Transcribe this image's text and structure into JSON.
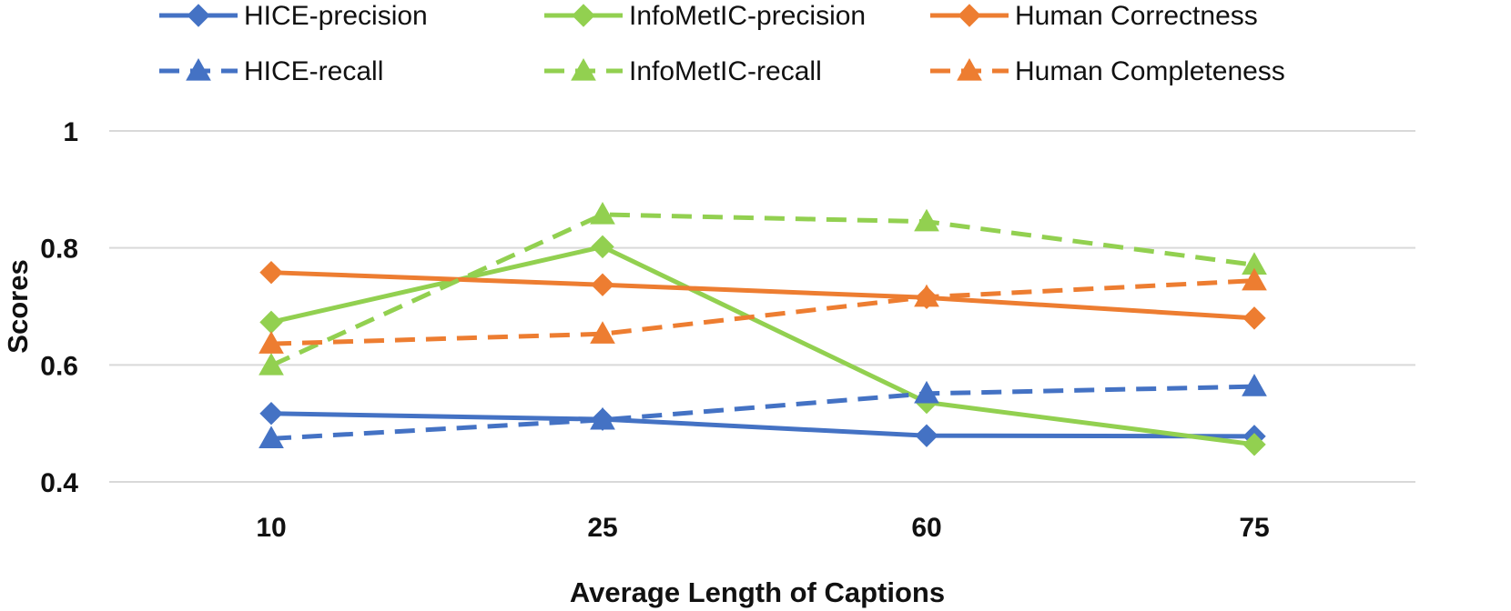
{
  "chart_data": {
    "type": "line",
    "xlabel": "Average Length of Captions",
    "ylabel": "Scores",
    "categories": [
      "10",
      "25",
      "60",
      "75"
    ],
    "yticks": [
      "0.4",
      "0.6",
      "0.8",
      "1"
    ],
    "ylim": [
      0.4,
      1.0
    ],
    "grid": true,
    "legend_position": "top",
    "series": [
      {
        "name": "HICE-precision",
        "values": [
          0.517,
          0.507,
          0.479,
          0.478
        ],
        "color": "#4472c4",
        "dash": "solid",
        "marker": "diamond"
      },
      {
        "name": "InfoMetIC-precision",
        "values": [
          0.673,
          0.802,
          0.536,
          0.464
        ],
        "color": "#92d050",
        "dash": "solid",
        "marker": "diamond"
      },
      {
        "name": "Human Correctness",
        "values": [
          0.758,
          0.737,
          0.715,
          0.68
        ],
        "color": "#ed7d31",
        "dash": "solid",
        "marker": "diamond"
      },
      {
        "name": "HICE-recall",
        "values": [
          0.474,
          0.506,
          0.551,
          0.563
        ],
        "color": "#4472c4",
        "dash": "dashed",
        "marker": "triangle"
      },
      {
        "name": "InfoMetIC-recall",
        "values": [
          0.599,
          0.857,
          0.845,
          0.771
        ],
        "color": "#92d050",
        "dash": "dashed",
        "marker": "triangle"
      },
      {
        "name": "Human Completeness",
        "values": [
          0.636,
          0.653,
          0.716,
          0.744
        ],
        "color": "#ed7d31",
        "dash": "dashed",
        "marker": "triangle"
      }
    ]
  }
}
